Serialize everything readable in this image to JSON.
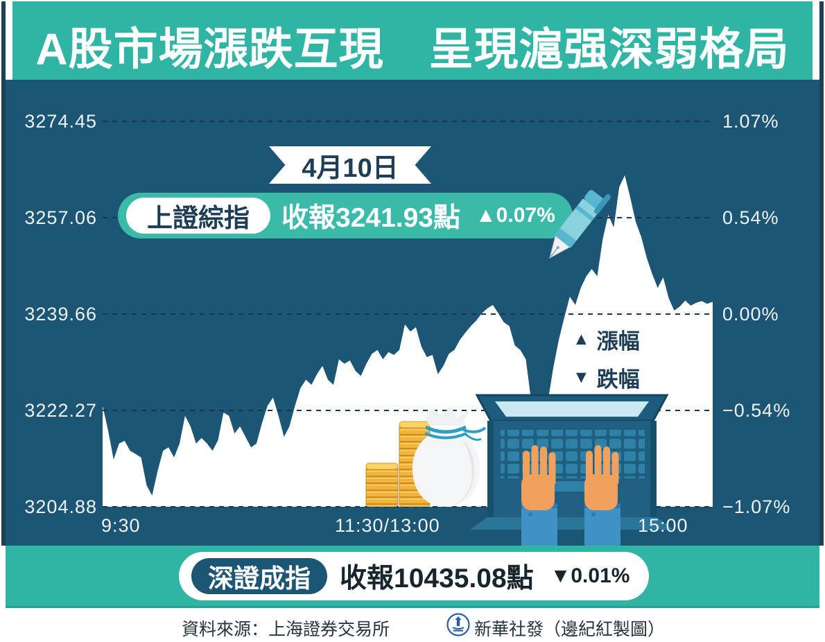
{
  "title": "A股市場漲跌互現　呈現滬强深弱格局",
  "date_badge": "4月10日",
  "sh_pill": {
    "name": "上證綜指",
    "close_label": "收報3241.93點",
    "change": "▲0.07%"
  },
  "legend": {
    "rows": [
      {
        "symbol": "▲",
        "label": "漲幅"
      },
      {
        "symbol": "▼",
        "label": "跌幅"
      }
    ]
  },
  "sz_pill": {
    "name": "深證成指",
    "close_label": "收報10435.08點",
    "change": "▼0.01%"
  },
  "footer": {
    "source": "資料來源：上海證券交易所",
    "credit": "新華社發（邊紀紅製圖）",
    "logo": "xinhua-seal-icon"
  },
  "icons": {
    "up_triangle": "▲",
    "down_triangle": "▼"
  },
  "colors": {
    "teal_band": "#30b4a4",
    "pill_teal": "#3bbaaa",
    "panel_navy": "#1c5674",
    "text_navy": "#1d3e55",
    "grid_dash": "#14374c",
    "area_fill": "#ffffff",
    "coin_gold": "#f2b339",
    "hand_skin": "#f2a05e",
    "sleeve_blue": "#3e92c6"
  },
  "chart_data": {
    "type": "area",
    "title": "上證綜指 4月10日 分時走勢",
    "x_axis": {
      "labels": [
        "9:30",
        "11:30/13:00",
        "15:00"
      ]
    },
    "y_axis_left": {
      "labels": [
        "3274.45",
        "3257.06",
        "3239.66",
        "3222.27",
        "3204.88"
      ],
      "min": 3204.88,
      "max": 3274.45
    },
    "y_axis_right": {
      "labels": [
        "1.07%",
        "0.54%",
        "0.00%",
        "−0.54%",
        "−1.07%"
      ]
    },
    "prev_close": 3239.66,
    "close": 3241.93,
    "change_pct": "+0.07%",
    "grid": "dashed-horizontal",
    "legend_position": "inside-right",
    "prices": [
      3223.1,
      3218.7,
      3213.4,
      3216.3,
      3216.8,
      3215.0,
      3214.4,
      3213.8,
      3208.8,
      3206.9,
      3211.3,
      3215.0,
      3215.6,
      3213.8,
      3216.3,
      3221.3,
      3219.4,
      3216.3,
      3217.3,
      3216.3,
      3215.0,
      3216.9,
      3221.9,
      3221.3,
      3218.1,
      3219.4,
      3217.5,
      3215.6,
      3216.3,
      3220.0,
      3223.1,
      3224.6,
      3221.3,
      3217.5,
      3219.4,
      3223.1,
      3226.3,
      3227.8,
      3226.9,
      3228.8,
      3230.3,
      3227.8,
      3226.9,
      3231.5,
      3230.7,
      3231.3,
      3229.4,
      3228.5,
      3230.7,
      3232.5,
      3233.2,
      3231.5,
      3232.8,
      3232.3,
      3233.2,
      3237.8,
      3236.5,
      3237.3,
      3233.8,
      3231.9,
      3232.3,
      3228.8,
      3230.3,
      3232.5,
      3233.2,
      3235.0,
      3236.3,
      3237.5,
      3238.5,
      3239.8,
      3240.7,
      3241.3,
      3239.8,
      3238.2,
      3237.5,
      3234.0,
      3233.2,
      3231.5,
      3223.8,
      3220.0,
      3218.1,
      3223.8,
      3230.0,
      3235.0,
      3239.0,
      3242.8,
      3241.3,
      3244.4,
      3246.5,
      3247.8,
      3246.5,
      3253.2,
      3257.6,
      3255.3,
      3262.6,
      3264.7,
      3260.7,
      3256.3,
      3253.6,
      3249.8,
      3246.9,
      3244.4,
      3246.3,
      3242.5,
      3240.3,
      3241.0,
      3242.1,
      3241.2,
      3241.7,
      3242.0,
      3241.5,
      3241.9
    ]
  }
}
